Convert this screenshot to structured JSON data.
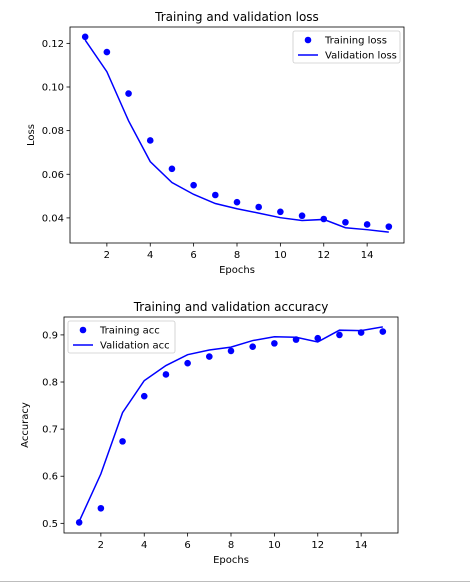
{
  "chart_data": [
    {
      "type": "line",
      "title": "Training and validation loss",
      "xlabel": "Epochs",
      "ylabel": "Loss",
      "xlim": [
        0.3,
        15.7
      ],
      "ylim": [
        0.0285,
        0.1275
      ],
      "xticks": [
        2,
        4,
        6,
        8,
        10,
        12,
        14
      ],
      "yticks": [
        0.04,
        0.06,
        0.08,
        0.1,
        0.12
      ],
      "ytick_labels": [
        "0.04",
        "0.06",
        "0.08",
        "0.10",
        "0.12"
      ],
      "grid": false,
      "legend": "top-right",
      "x": [
        1,
        2,
        3,
        4,
        5,
        6,
        7,
        8,
        9,
        10,
        11,
        12,
        13,
        14,
        15
      ],
      "series": [
        {
          "name": "Training loss",
          "style": "dots",
          "color": "#0000ff",
          "values": [
            0.123,
            0.116,
            0.097,
            0.0755,
            0.0625,
            0.055,
            0.0505,
            0.0472,
            0.045,
            0.0428,
            0.041,
            0.0395,
            0.038,
            0.037,
            0.036
          ]
        },
        {
          "name": "Validation loss",
          "style": "line",
          "color": "#0000ff",
          "values": [
            0.1215,
            0.107,
            0.0845,
            0.0658,
            0.0562,
            0.0508,
            0.0466,
            0.0442,
            0.0422,
            0.0401,
            0.0388,
            0.0393,
            0.0355,
            0.0346,
            0.0335
          ]
        }
      ]
    },
    {
      "type": "line",
      "title": "Training and validation accuracy",
      "xlabel": "Epochs",
      "ylabel": "Accuracy",
      "xlim": [
        0.3,
        15.7
      ],
      "ylim": [
        0.4795,
        0.938
      ],
      "xticks": [
        2,
        4,
        6,
        8,
        10,
        12,
        14
      ],
      "yticks": [
        0.5,
        0.6,
        0.7,
        0.8,
        0.9
      ],
      "ytick_labels": [
        "0.5",
        "0.6",
        "0.7",
        "0.8",
        "0.9"
      ],
      "grid": false,
      "legend": "top-left",
      "x": [
        1,
        2,
        3,
        4,
        5,
        6,
        7,
        8,
        9,
        10,
        11,
        12,
        13,
        14,
        15
      ],
      "series": [
        {
          "name": "Training acc",
          "style": "dots",
          "color": "#0000ff",
          "values": [
            0.502,
            0.532,
            0.674,
            0.77,
            0.816,
            0.84,
            0.854,
            0.866,
            0.875,
            0.882,
            0.89,
            0.893,
            0.9,
            0.905,
            0.907
          ]
        },
        {
          "name": "Validation acc",
          "style": "line",
          "color": "#0000ff",
          "values": [
            0.504,
            0.605,
            0.735,
            0.803,
            0.835,
            0.858,
            0.868,
            0.874,
            0.888,
            0.896,
            0.895,
            0.885,
            0.91,
            0.909,
            0.917
          ]
        }
      ]
    }
  ]
}
